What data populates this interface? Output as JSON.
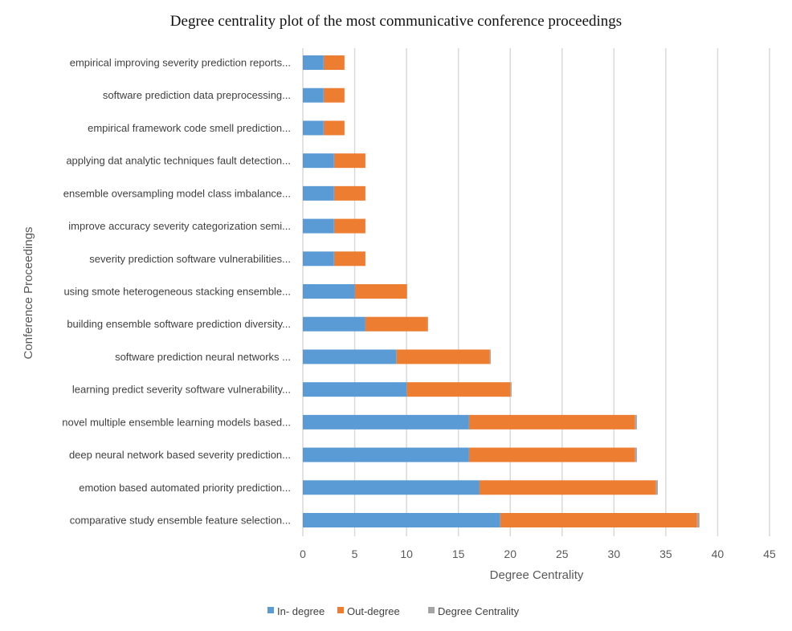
{
  "chart_data": {
    "type": "bar",
    "orientation": "horizontal",
    "stacked": true,
    "title": "Degree centrality plot of the most communicative conference proceedings",
    "xlabel": "Degree Centrality",
    "ylabel": "Conference Proceedings",
    "xlim": [
      0,
      45
    ],
    "xticks": [
      0,
      5,
      10,
      15,
      20,
      25,
      30,
      35,
      40,
      45
    ],
    "grid": true,
    "legend": "bottom",
    "categories": [
      "empirical improving severity prediction reports...",
      "software prediction data preprocessing...",
      "empirical framework code smell prediction...",
      "applying dat analytic techniques fault detection...",
      "ensemble oversampling model class imbalance...",
      "improve accuracy severity categorization semi...",
      "severity prediction software vulnerabilities...",
      "using smote heterogeneous stacking ensemble...",
      "building ensemble software prediction diversity...",
      "software prediction neural networks ...",
      "learning predict severity software vulnerability...",
      "novel multiple ensemble learning models based...",
      "deep neural network based severity prediction...",
      "emotion based automated priority prediction...",
      "comparative study ensemble feature selection..."
    ],
    "series": [
      {
        "name": "In- degree",
        "color": "#5b9bd5",
        "values": [
          2,
          2,
          2,
          3,
          3,
          3,
          3,
          5,
          6,
          9,
          10,
          16,
          16,
          17,
          19
        ]
      },
      {
        "name": "Out-degree",
        "color": "#ed7d31",
        "values": [
          2,
          2,
          2,
          3,
          3,
          3,
          3,
          5,
          6,
          9,
          10,
          16,
          16,
          17,
          19
        ]
      },
      {
        "name": "Degree Centrality",
        "color": "#a5a5a5",
        "values": [
          0.03,
          0.03,
          0.03,
          0.04,
          0.04,
          0.04,
          0.04,
          0.07,
          0.08,
          0.12,
          0.13,
          0.21,
          0.21,
          0.23,
          0.25
        ]
      }
    ]
  }
}
